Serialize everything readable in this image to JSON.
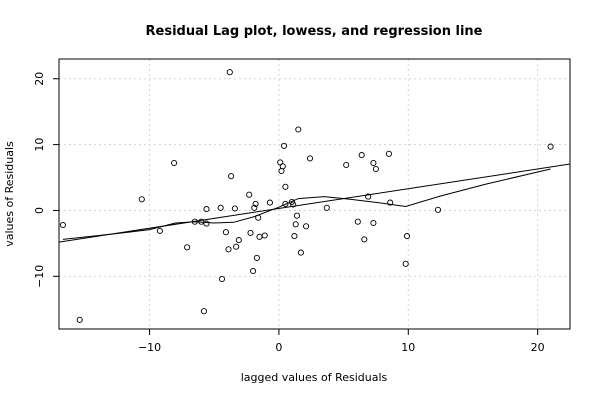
{
  "chart_data": {
    "type": "scatter",
    "title": "Residual Lag plot, lowess, and regression line",
    "xlabel": "lagged values of Residuals",
    "ylabel": "values of Residuals",
    "xlim": [
      -17,
      22.5
    ],
    "ylim": [
      -18,
      23
    ],
    "x_ticks": [
      -10,
      0,
      10,
      20
    ],
    "y_ticks": [
      -10,
      0,
      10,
      20
    ],
    "x_tick_labels": [
      "−10",
      "0",
      "10",
      "20"
    ],
    "y_tick_labels": [
      "−10",
      "0",
      "10",
      "20"
    ],
    "grid": true,
    "points": [
      [
        -16.7,
        -2.2
      ],
      [
        -15.4,
        -16.6
      ],
      [
        -10.6,
        1.7
      ],
      [
        -9.2,
        -3.1
      ],
      [
        -8.1,
        7.2
      ],
      [
        -7.1,
        -5.6
      ],
      [
        -6.5,
        -1.7
      ],
      [
        -6.0,
        -1.7
      ],
      [
        -5.8,
        -15.3
      ],
      [
        -5.6,
        0.2
      ],
      [
        -5.6,
        -2.0
      ],
      [
        -4.5,
        0.4
      ],
      [
        -4.4,
        -10.4
      ],
      [
        -4.1,
        -3.3
      ],
      [
        -3.9,
        -5.9
      ],
      [
        -3.8,
        21.0
      ],
      [
        -3.7,
        5.2
      ],
      [
        -3.4,
        0.3
      ],
      [
        -3.3,
        -5.5
      ],
      [
        -3.1,
        -4.5
      ],
      [
        -2.3,
        2.4
      ],
      [
        -2.2,
        -3.4
      ],
      [
        -2.0,
        -9.2
      ],
      [
        -1.9,
        0.4
      ],
      [
        -1.8,
        1.0
      ],
      [
        -1.7,
        -7.2
      ],
      [
        -1.6,
        -1.1
      ],
      [
        -1.5,
        -4.0
      ],
      [
        -1.1,
        -3.8
      ],
      [
        -0.7,
        1.2
      ],
      [
        0.1,
        7.3
      ],
      [
        0.2,
        6.0
      ],
      [
        0.3,
        6.7
      ],
      [
        0.4,
        9.8
      ],
      [
        0.5,
        1.0
      ],
      [
        0.5,
        3.6
      ],
      [
        1.0,
        1.3
      ],
      [
        1.1,
        0.9
      ],
      [
        1.2,
        -3.9
      ],
      [
        1.3,
        -2.1
      ],
      [
        1.4,
        -0.8
      ],
      [
        1.5,
        12.3
      ],
      [
        1.7,
        -6.4
      ],
      [
        2.1,
        -2.4
      ],
      [
        2.4,
        7.9
      ],
      [
        3.7,
        0.4
      ],
      [
        5.2,
        6.9
      ],
      [
        6.1,
        -1.7
      ],
      [
        6.4,
        8.4
      ],
      [
        6.6,
        -4.4
      ],
      [
        6.9,
        2.1
      ],
      [
        7.3,
        7.2
      ],
      [
        7.3,
        -1.9
      ],
      [
        7.5,
        6.3
      ],
      [
        8.5,
        8.6
      ],
      [
        8.6,
        1.2
      ],
      [
        9.8,
        -8.1
      ],
      [
        9.9,
        -3.9
      ],
      [
        12.3,
        0.1
      ],
      [
        21.0,
        9.7
      ]
    ],
    "regression_line": {
      "intercept": 0.3,
      "slope": 0.3
    },
    "lowess": [
      [
        -16.7,
        -4.4
      ],
      [
        -12.5,
        -3.5
      ],
      [
        -10.0,
        -2.9
      ],
      [
        -8.0,
        -1.9
      ],
      [
        -6.5,
        -1.7
      ],
      [
        -5.0,
        -1.9
      ],
      [
        -3.5,
        -1.8
      ],
      [
        -2.0,
        -1.0
      ],
      [
        0.0,
        0.5
      ],
      [
        1.5,
        1.8
      ],
      [
        3.5,
        2.1
      ],
      [
        5.5,
        1.7
      ],
      [
        8.0,
        1.1
      ],
      [
        9.8,
        0.6
      ],
      [
        12.5,
        2.2
      ],
      [
        16.0,
        4.0
      ],
      [
        21.0,
        6.3
      ]
    ]
  }
}
